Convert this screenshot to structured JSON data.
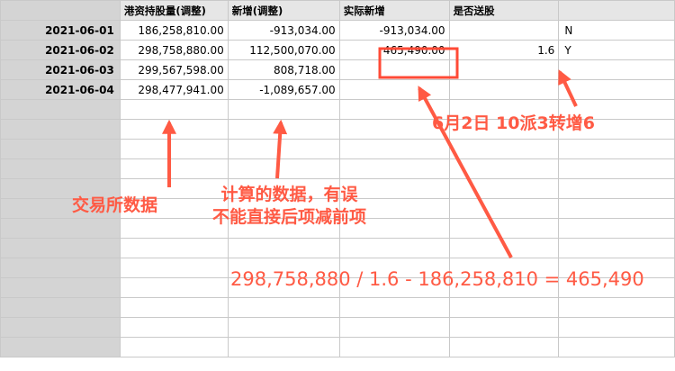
{
  "table": {
    "headers": [
      "",
      "港资持股量(调整)",
      "新增(调整)",
      "实际新增",
      "是否送股",
      ""
    ],
    "rows": [
      {
        "date": "2021-06-01",
        "holding": "186,258,810.00",
        "added": "-913,034.00",
        "actual": "-913,034.00",
        "ratio": "",
        "bonus": "N"
      },
      {
        "date": "2021-06-02",
        "holding": "298,758,880.00",
        "added": "112,500,070.00",
        "actual": "465,490.00",
        "ratio": "1.6",
        "bonus": "Y"
      },
      {
        "date": "2021-06-03",
        "holding": "299,567,598.00",
        "added": "808,718.00",
        "actual": "",
        "ratio": "",
        "bonus": ""
      },
      {
        "date": "2021-06-04",
        "holding": "298,477,941.00",
        "added": "-1,089,657.00",
        "actual": "",
        "ratio": "",
        "bonus": ""
      }
    ],
    "empty_rows": 13
  },
  "annotations": {
    "exchange_data": "交易所数据",
    "calc_line1": "计算的数据，有误",
    "calc_line2": "不能直接后项减前项",
    "event": "6月2日 10派3转增6",
    "formula": "298,758,880 / 1.6 - 186,258,810 = 465,490"
  },
  "colors": {
    "annotation": "#ff5a44",
    "header_bg": "#e6e6e6",
    "row_header_bg": "#d4d4d4",
    "grid_line": "#c9c9c9"
  }
}
